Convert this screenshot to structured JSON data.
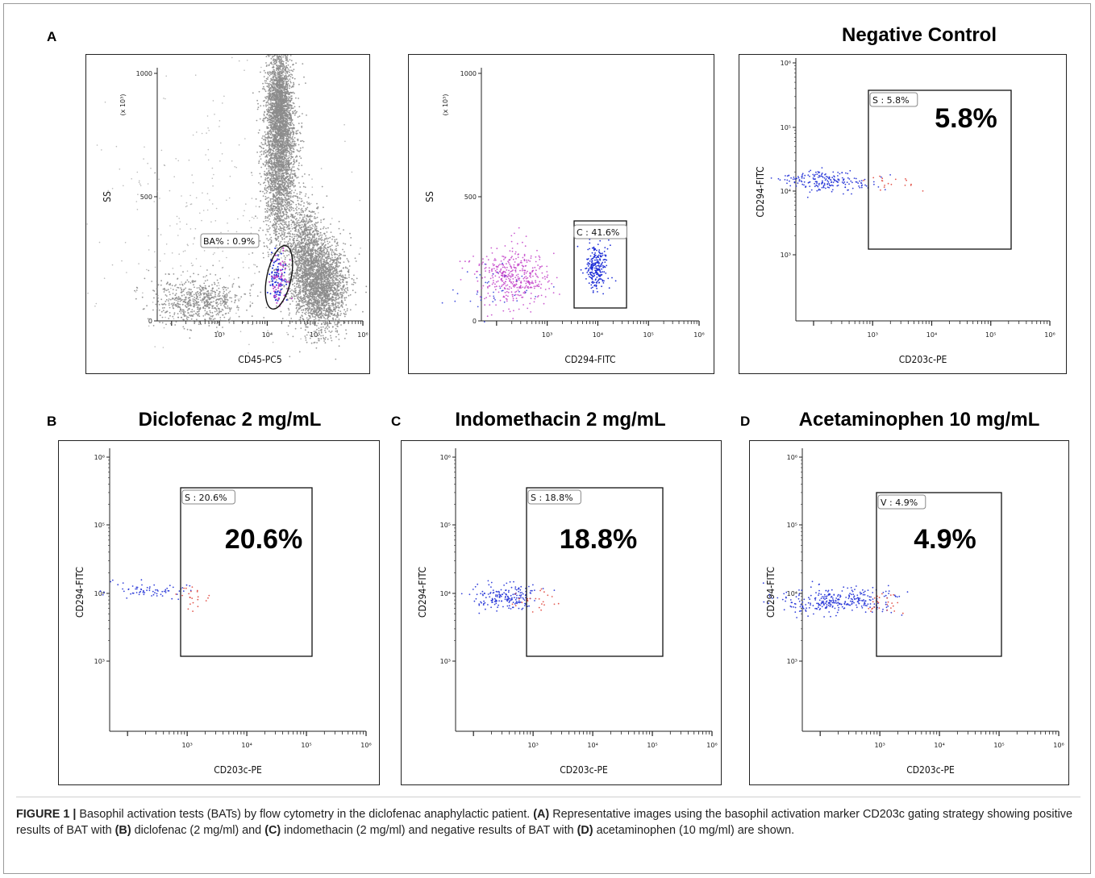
{
  "panel_letters": {
    "a": "A",
    "b": "B",
    "c": "C",
    "d": "D"
  },
  "panel_titles": {
    "neg": "Negative Control",
    "b": "Diclofenac 2 mg/mL",
    "c": "Indomethacin 2 mg/mL",
    "d": "Acetaminophen 10 mg/mL"
  },
  "chart_data": [
    {
      "id": "p1",
      "type": "scatter",
      "xlabel": "CD45-PC5",
      "ylabel": "SS",
      "y_multiplier": "(x 10³)",
      "x_scale": "log",
      "y_scale": "linear",
      "ylim": [
        0,
        1000
      ],
      "y_ticks": [
        "0",
        "500",
        "1000"
      ],
      "x_ticks": [
        "10³",
        "10⁴",
        "10⁵",
        "10⁶"
      ],
      "gate": {
        "label": "BA% : 0.9%",
        "shape": "ellipse",
        "value_percent": 0.9
      }
    },
    {
      "id": "p2",
      "type": "scatter",
      "xlabel": "CD294-FITC",
      "ylabel": "SS",
      "y_multiplier": "(x 10³)",
      "x_scale": "log",
      "y_scale": "linear",
      "ylim": [
        0,
        1000
      ],
      "y_ticks": [
        "0",
        "500",
        "1000"
      ],
      "x_ticks": [
        "10³",
        "10⁴",
        "10⁵",
        "10⁶"
      ],
      "gate": {
        "label": "C : 41.6%",
        "shape": "rectangle",
        "value_percent": 41.6
      }
    },
    {
      "id": "p3",
      "type": "scatter",
      "title": "Negative Control",
      "xlabel": "CD203c-PE",
      "ylabel": "CD294-FITC",
      "x_scale": "log",
      "y_scale": "log",
      "y_ticks": [
        "10³",
        "10⁴",
        "10⁵",
        "10⁶"
      ],
      "x_ticks": [
        "10³",
        "10⁴",
        "10⁵",
        "10⁶"
      ],
      "gate": {
        "label": "S : 5.8%",
        "shape": "rectangle",
        "value_percent": 5.8
      },
      "annotation": "5.8%"
    },
    {
      "id": "pb",
      "type": "scatter",
      "title": "Diclofenac 2 mg/mL",
      "xlabel": "CD203c-PE",
      "ylabel": "CD294-FITC",
      "x_scale": "log",
      "y_scale": "log",
      "y_ticks": [
        "10³",
        "10⁴",
        "10⁵",
        "10⁶"
      ],
      "x_ticks": [
        "10³",
        "10⁴",
        "10⁵",
        "10⁶"
      ],
      "gate": {
        "label": "S : 20.6%",
        "shape": "rectangle",
        "value_percent": 20.6
      },
      "annotation": "20.6%"
    },
    {
      "id": "pc",
      "type": "scatter",
      "title": "Indomethacin 2 mg/mL",
      "xlabel": "CD203c-PE",
      "ylabel": "CD294-FITC",
      "x_scale": "log",
      "y_scale": "log",
      "y_ticks": [
        "10³",
        "10⁴",
        "10⁵",
        "10⁶"
      ],
      "x_ticks": [
        "10³",
        "10⁴",
        "10⁵",
        "10⁶"
      ],
      "gate": {
        "label": "S : 18.8%",
        "shape": "rectangle",
        "value_percent": 18.8
      },
      "annotation": "18.8%"
    },
    {
      "id": "pd",
      "type": "scatter",
      "title": "Acetaminophen 10 mg/mL",
      "xlabel": "CD203c-PE",
      "ylabel": "CD294-FITC",
      "x_scale": "log",
      "y_scale": "log",
      "y_ticks": [
        "10³",
        "10⁴",
        "10⁵",
        "10⁶"
      ],
      "x_ticks": [
        "10³",
        "10⁴",
        "10⁵",
        "10⁶"
      ],
      "gate": {
        "label": "V : 4.9%",
        "shape": "rectangle",
        "value_percent": 4.9
      },
      "annotation": "4.9%"
    }
  ],
  "caption": {
    "label": "FIGURE 1 |",
    "t1": " Basophil activation tests (BATs) by flow cytometry in the diclofenac anaphylactic patient. ",
    "a": "(A)",
    "t2": " Representative images using the basophil activation marker CD203c gating strategy showing positive results of BAT with ",
    "b": "(B)",
    "t3": " diclofenac (2 mg/ml) and ",
    "c": "(C)",
    "t4": " indomethacin (2 mg/ml) and negative results of BAT with ",
    "d": "(D)",
    "t5": " acetaminophen (10 mg/ml) are shown."
  },
  "colors": {
    "grey_events": "#8c8c8c",
    "basophil_blue": "#1f2fd6",
    "activated_red": "#e0463c",
    "magenta_events": "#c23fc8"
  }
}
